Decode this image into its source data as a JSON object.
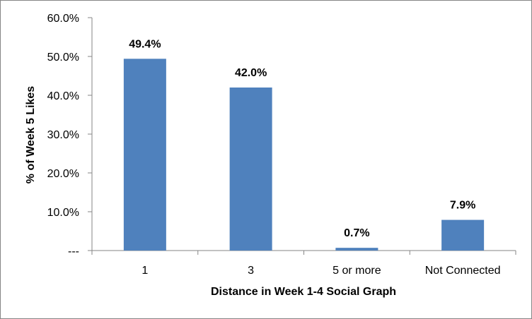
{
  "chart_data": {
    "type": "bar",
    "title": "",
    "xlabel": "Distance in Week 1-4 Social Graph",
    "ylabel": "% of Week 5 Likes",
    "categories": [
      "1",
      "3",
      "5 or more",
      "Not Connected"
    ],
    "values": [
      49.4,
      42.0,
      0.7,
      7.9
    ],
    "data_labels": [
      "49.4%",
      "42.0%",
      "0.7%",
      "7.9%"
    ],
    "ylim": [
      0,
      60
    ],
    "yticks": [
      0,
      10,
      20,
      30,
      40,
      50,
      60
    ],
    "ytick_labels": [
      "---",
      "10.0%",
      "20.0%",
      "30.0%",
      "40.0%",
      "50.0%",
      "60.0%"
    ],
    "bar_color": "#4F81BD",
    "grid": false,
    "legend": "none"
  }
}
